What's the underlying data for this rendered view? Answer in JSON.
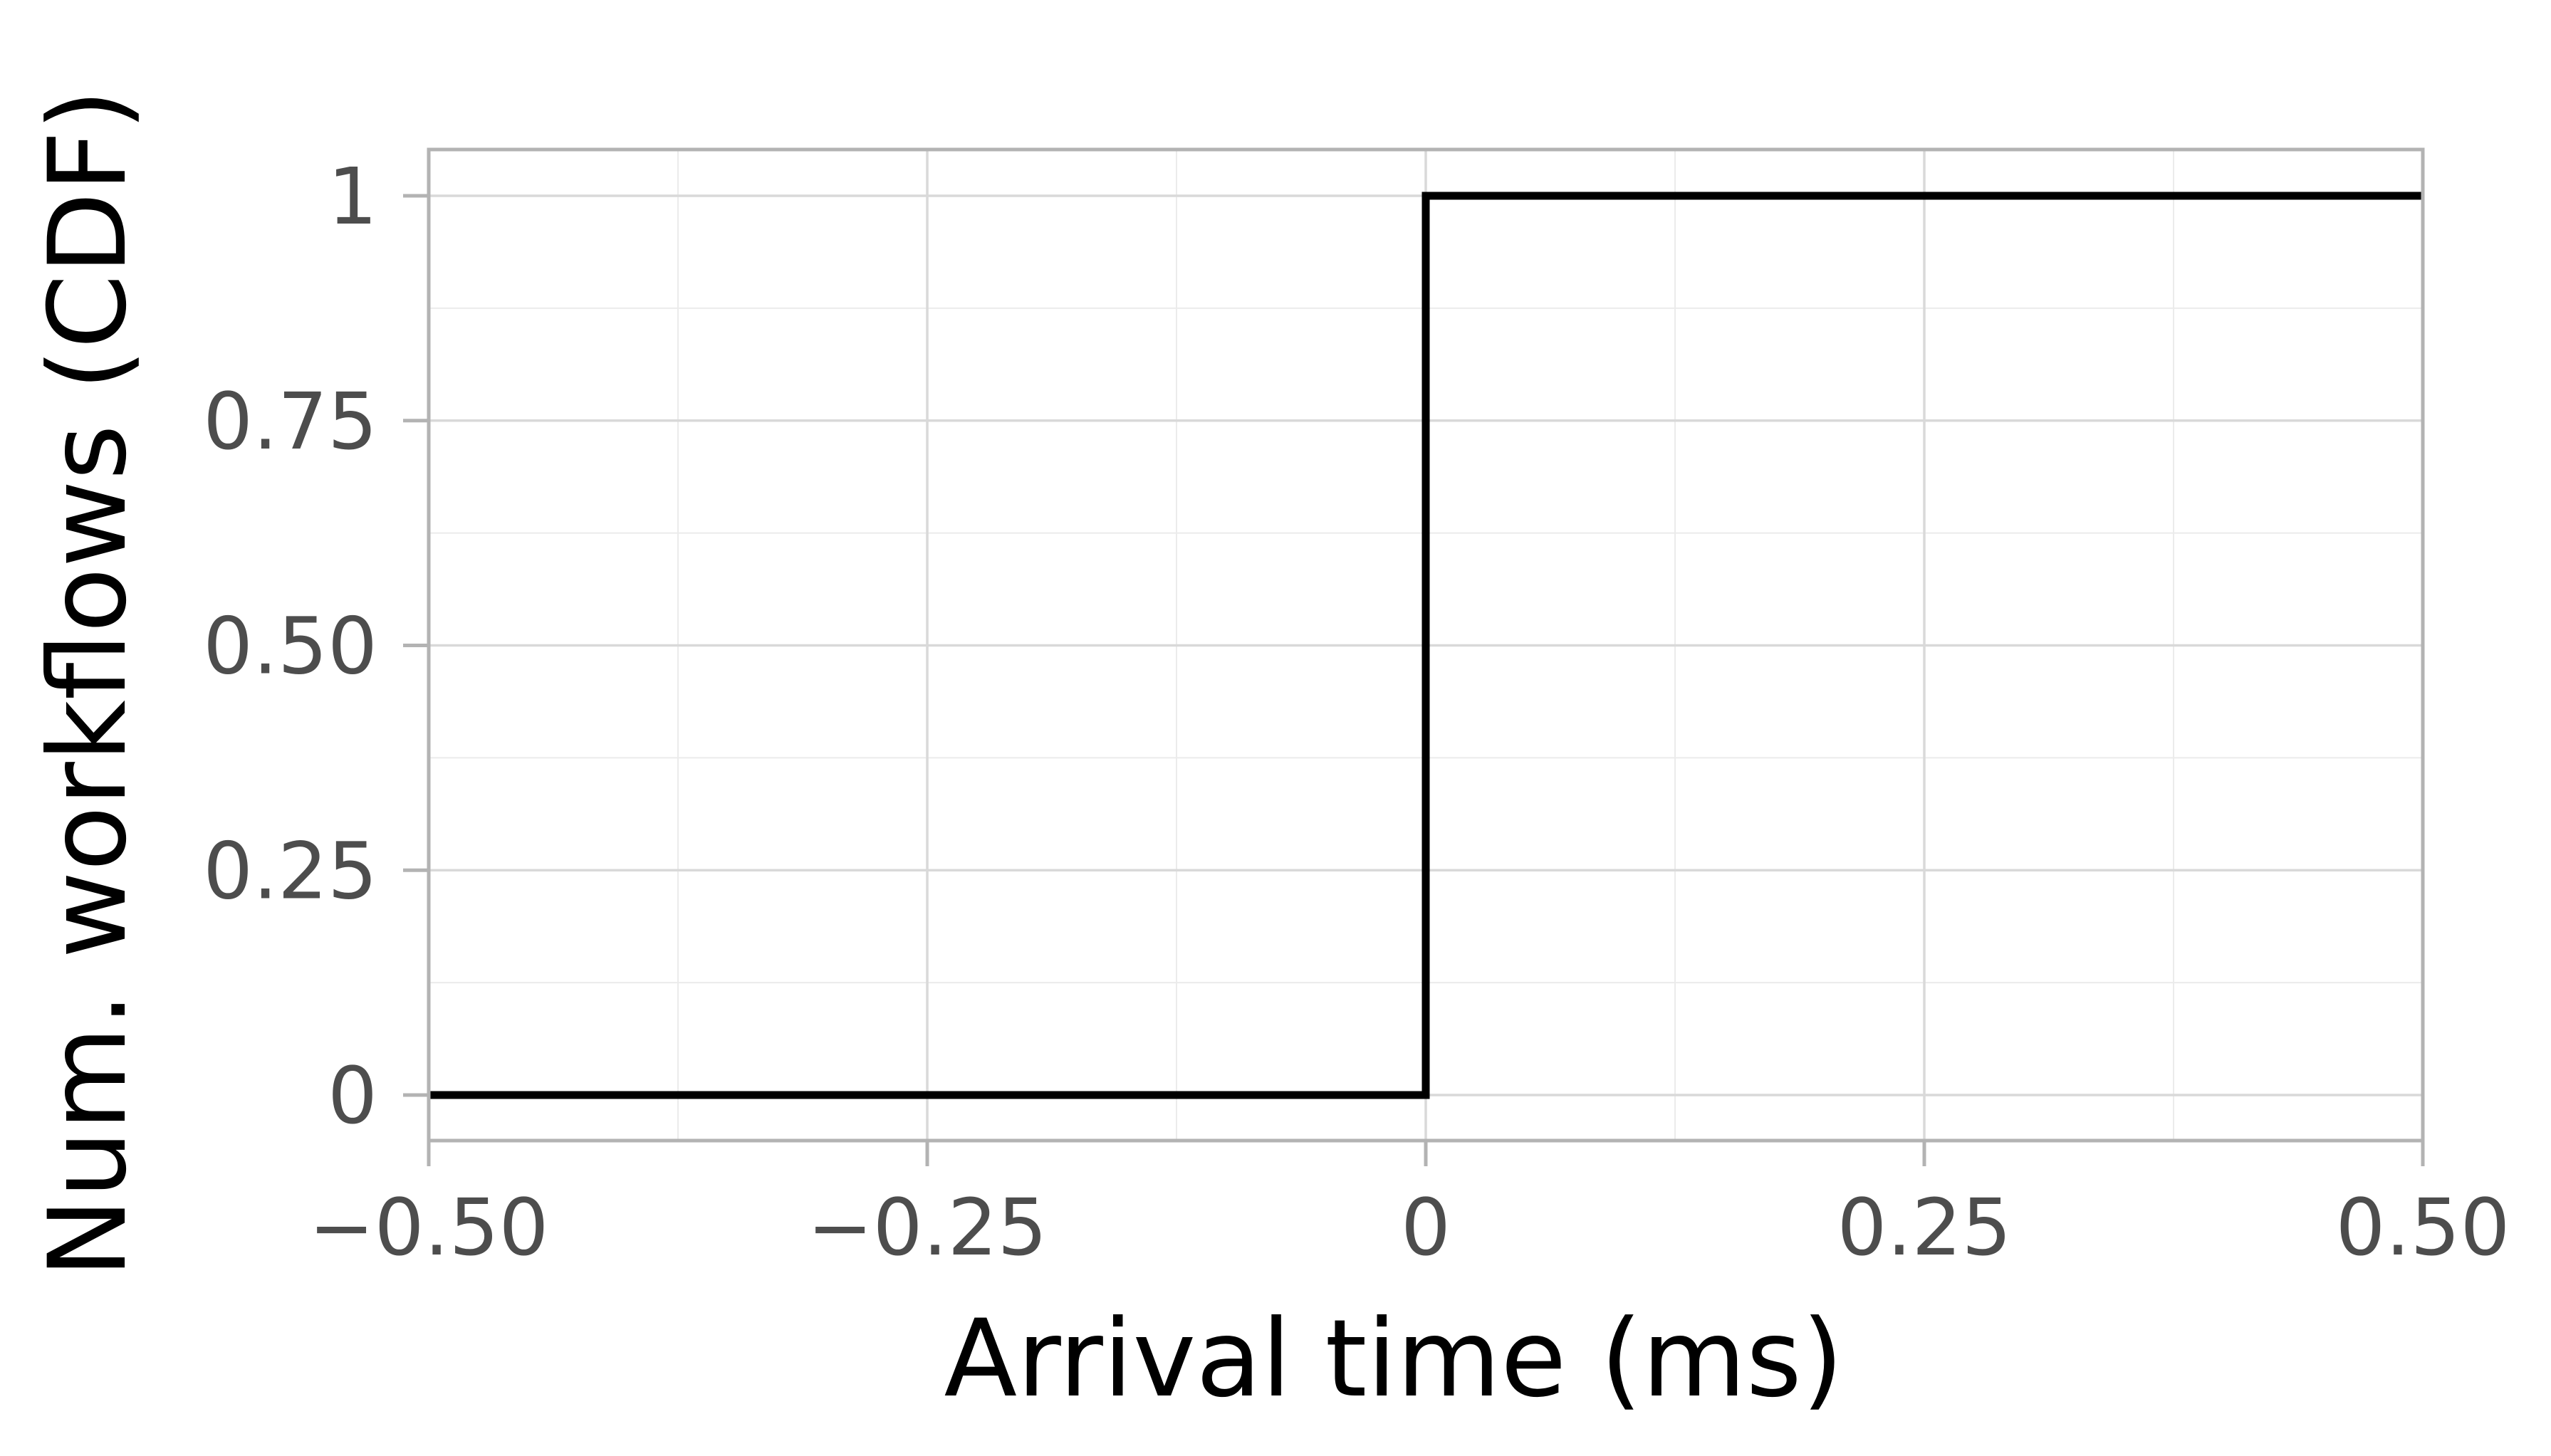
{
  "chart_data": {
    "type": "line",
    "step": true,
    "title": "",
    "xlabel": "Arrival time (ms)",
    "ylabel": "Num. workflows (CDF)",
    "xlim": [
      -0.5,
      0.5
    ],
    "ylim": [
      0,
      1
    ],
    "xticks": [
      {
        "value": -0.5,
        "label": "−0.50"
      },
      {
        "value": -0.25,
        "label": "−0.25"
      },
      {
        "value": 0,
        "label": "0"
      },
      {
        "value": 0.25,
        "label": "0.25"
      },
      {
        "value": 0.5,
        "label": "0.50"
      }
    ],
    "yticks": [
      {
        "value": 0,
        "label": "0"
      },
      {
        "value": 0.25,
        "label": "0.25"
      },
      {
        "value": 0.5,
        "label": "0.50"
      },
      {
        "value": 0.75,
        "label": "0.75"
      },
      {
        "value": 1,
        "label": "1"
      }
    ],
    "grid": true,
    "legend": "none",
    "series": [
      {
        "color": "#000000",
        "points": [
          [
            -0.5,
            0
          ],
          [
            0,
            0
          ],
          [
            0,
            1
          ],
          [
            0.5,
            1
          ]
        ]
      }
    ]
  }
}
